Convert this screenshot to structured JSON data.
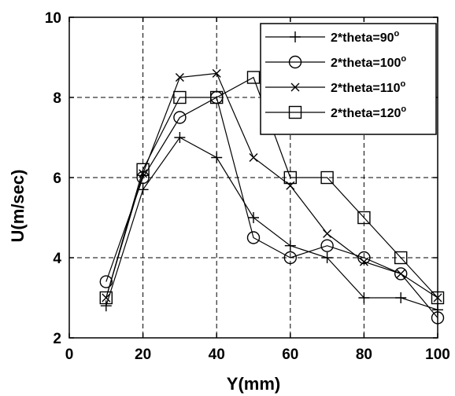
{
  "chart_data": {
    "type": "line",
    "xlabel": "Y(mm)",
    "ylabel": "U(m/sec)",
    "xlim": [
      0,
      100
    ],
    "ylim": [
      2,
      10
    ],
    "xticks": [
      0,
      20,
      40,
      60,
      80,
      100
    ],
    "yticks": [
      2,
      4,
      6,
      8,
      10
    ],
    "grid": true,
    "legend_position": "top-right",
    "series": [
      {
        "name": "2*theta=90",
        "superscript": "o",
        "marker": "plus",
        "x": [
          10,
          20,
          30,
          40,
          50,
          60,
          70,
          80,
          90,
          100
        ],
        "y": [
          2.8,
          5.7,
          7.0,
          6.5,
          5.0,
          4.3,
          4.0,
          3.0,
          3.0,
          2.7
        ]
      },
      {
        "name": "2*theta=100",
        "superscript": "o",
        "marker": "circle",
        "x": [
          10,
          20,
          30,
          40,
          50,
          60,
          70,
          80,
          90,
          100
        ],
        "y": [
          3.4,
          6.0,
          7.5,
          8.0,
          4.5,
          4.0,
          4.3,
          4.0,
          3.6,
          2.5
        ]
      },
      {
        "name": "2*theta=110",
        "superscript": "o",
        "marker": "x",
        "x": [
          10,
          20,
          30,
          40,
          50,
          60,
          70,
          80,
          90,
          100
        ],
        "y": [
          3.0,
          6.1,
          8.5,
          8.6,
          6.5,
          5.8,
          4.6,
          3.9,
          3.6,
          3.0
        ]
      },
      {
        "name": "2*theta=120",
        "superscript": "o",
        "marker": "square",
        "x": [
          10,
          20,
          30,
          40,
          50,
          60,
          70,
          80,
          90,
          100
        ],
        "y": [
          3.0,
          6.2,
          8.0,
          8.0,
          8.5,
          6.0,
          6.0,
          5.0,
          4.0,
          3.0
        ]
      }
    ]
  }
}
